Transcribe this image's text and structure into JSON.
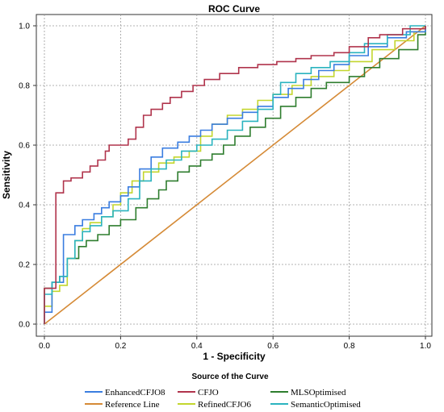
{
  "chart_data": {
    "type": "line",
    "title": "ROC Curve",
    "xlabel": "1 - Specificity",
    "ylabel": "Sensitivity",
    "xlim": [
      0,
      1
    ],
    "ylim": [
      0,
      1
    ],
    "xticks": [
      "0.0",
      "0.2",
      "0.4",
      "0.6",
      "0.8",
      "1.0"
    ],
    "yticks": [
      "0.0",
      "0.2",
      "0.4",
      "0.6",
      "0.8",
      "1.0"
    ],
    "grid": true,
    "legend_title": "Source of the Curve",
    "legend_position": "bottom",
    "series": [
      {
        "name": "EnhancedCFJO8",
        "color": "#3a7de0",
        "points": [
          [
            0,
            0
          ],
          [
            0,
            0.04
          ],
          [
            0.02,
            0.04
          ],
          [
            0.02,
            0.14
          ],
          [
            0.05,
            0.14
          ],
          [
            0.05,
            0.3
          ],
          [
            0.08,
            0.3
          ],
          [
            0.08,
            0.33
          ],
          [
            0.1,
            0.33
          ],
          [
            0.1,
            0.35
          ],
          [
            0.13,
            0.35
          ],
          [
            0.13,
            0.37
          ],
          [
            0.15,
            0.37
          ],
          [
            0.15,
            0.39
          ],
          [
            0.17,
            0.39
          ],
          [
            0.17,
            0.41
          ],
          [
            0.2,
            0.41
          ],
          [
            0.2,
            0.43
          ],
          [
            0.22,
            0.43
          ],
          [
            0.22,
            0.46
          ],
          [
            0.25,
            0.46
          ],
          [
            0.25,
            0.52
          ],
          [
            0.28,
            0.52
          ],
          [
            0.28,
            0.56
          ],
          [
            0.31,
            0.56
          ],
          [
            0.31,
            0.59
          ],
          [
            0.35,
            0.59
          ],
          [
            0.35,
            0.61
          ],
          [
            0.38,
            0.61
          ],
          [
            0.38,
            0.63
          ],
          [
            0.41,
            0.63
          ],
          [
            0.41,
            0.65
          ],
          [
            0.44,
            0.65
          ],
          [
            0.44,
            0.67
          ],
          [
            0.48,
            0.67
          ],
          [
            0.48,
            0.69
          ],
          [
            0.52,
            0.69
          ],
          [
            0.52,
            0.71
          ],
          [
            0.56,
            0.71
          ],
          [
            0.56,
            0.73
          ],
          [
            0.6,
            0.73
          ],
          [
            0.6,
            0.76
          ],
          [
            0.64,
            0.76
          ],
          [
            0.64,
            0.79
          ],
          [
            0.68,
            0.79
          ],
          [
            0.68,
            0.82
          ],
          [
            0.72,
            0.82
          ],
          [
            0.72,
            0.85
          ],
          [
            0.76,
            0.85
          ],
          [
            0.76,
            0.87
          ],
          [
            0.8,
            0.87
          ],
          [
            0.8,
            0.9
          ],
          [
            0.85,
            0.9
          ],
          [
            0.85,
            0.93
          ],
          [
            0.9,
            0.93
          ],
          [
            0.9,
            0.96
          ],
          [
            0.95,
            0.96
          ],
          [
            0.95,
            0.98
          ],
          [
            1,
            0.98
          ],
          [
            1,
            1
          ]
        ]
      },
      {
        "name": "CFJO",
        "color": "#b0344c",
        "points": [
          [
            0,
            0
          ],
          [
            0,
            0.12
          ],
          [
            0.03,
            0.12
          ],
          [
            0.03,
            0.44
          ],
          [
            0.05,
            0.44
          ],
          [
            0.05,
            0.48
          ],
          [
            0.07,
            0.48
          ],
          [
            0.07,
            0.49
          ],
          [
            0.1,
            0.49
          ],
          [
            0.1,
            0.51
          ],
          [
            0.12,
            0.51
          ],
          [
            0.12,
            0.53
          ],
          [
            0.14,
            0.53
          ],
          [
            0.14,
            0.55
          ],
          [
            0.16,
            0.55
          ],
          [
            0.16,
            0.58
          ],
          [
            0.17,
            0.58
          ],
          [
            0.17,
            0.6
          ],
          [
            0.22,
            0.6
          ],
          [
            0.22,
            0.62
          ],
          [
            0.24,
            0.62
          ],
          [
            0.24,
            0.66
          ],
          [
            0.26,
            0.66
          ],
          [
            0.26,
            0.7
          ],
          [
            0.28,
            0.7
          ],
          [
            0.28,
            0.72
          ],
          [
            0.31,
            0.72
          ],
          [
            0.31,
            0.74
          ],
          [
            0.33,
            0.74
          ],
          [
            0.33,
            0.76
          ],
          [
            0.36,
            0.76
          ],
          [
            0.36,
            0.78
          ],
          [
            0.39,
            0.78
          ],
          [
            0.39,
            0.8
          ],
          [
            0.42,
            0.8
          ],
          [
            0.42,
            0.82
          ],
          [
            0.46,
            0.82
          ],
          [
            0.46,
            0.84
          ],
          [
            0.51,
            0.84
          ],
          [
            0.51,
            0.86
          ],
          [
            0.56,
            0.86
          ],
          [
            0.56,
            0.87
          ],
          [
            0.61,
            0.87
          ],
          [
            0.61,
            0.88
          ],
          [
            0.66,
            0.88
          ],
          [
            0.66,
            0.89
          ],
          [
            0.7,
            0.89
          ],
          [
            0.7,
            0.9
          ],
          [
            0.76,
            0.9
          ],
          [
            0.76,
            0.91
          ],
          [
            0.8,
            0.91
          ],
          [
            0.8,
            0.93
          ],
          [
            0.85,
            0.93
          ],
          [
            0.85,
            0.96
          ],
          [
            0.88,
            0.96
          ],
          [
            0.88,
            0.97
          ],
          [
            0.94,
            0.97
          ],
          [
            0.94,
            0.99
          ],
          [
            1,
            0.99
          ],
          [
            1,
            1
          ]
        ]
      },
      {
        "name": "MLSOptimised",
        "color": "#2e7d2e",
        "points": [
          [
            0,
            0
          ],
          [
            0,
            0.12
          ],
          [
            0.02,
            0.12
          ],
          [
            0.02,
            0.14
          ],
          [
            0.04,
            0.14
          ],
          [
            0.04,
            0.16
          ],
          [
            0.06,
            0.16
          ],
          [
            0.06,
            0.22
          ],
          [
            0.09,
            0.22
          ],
          [
            0.09,
            0.26
          ],
          [
            0.11,
            0.26
          ],
          [
            0.11,
            0.28
          ],
          [
            0.14,
            0.28
          ],
          [
            0.14,
            0.3
          ],
          [
            0.17,
            0.3
          ],
          [
            0.17,
            0.33
          ],
          [
            0.2,
            0.33
          ],
          [
            0.2,
            0.35
          ],
          [
            0.24,
            0.35
          ],
          [
            0.24,
            0.39
          ],
          [
            0.27,
            0.39
          ],
          [
            0.27,
            0.42
          ],
          [
            0.3,
            0.42
          ],
          [
            0.3,
            0.45
          ],
          [
            0.32,
            0.45
          ],
          [
            0.32,
            0.48
          ],
          [
            0.35,
            0.48
          ],
          [
            0.35,
            0.51
          ],
          [
            0.38,
            0.51
          ],
          [
            0.38,
            0.53
          ],
          [
            0.41,
            0.53
          ],
          [
            0.41,
            0.55
          ],
          [
            0.44,
            0.55
          ],
          [
            0.44,
            0.57
          ],
          [
            0.47,
            0.57
          ],
          [
            0.47,
            0.6
          ],
          [
            0.5,
            0.6
          ],
          [
            0.5,
            0.63
          ],
          [
            0.54,
            0.63
          ],
          [
            0.54,
            0.66
          ],
          [
            0.58,
            0.66
          ],
          [
            0.58,
            0.69
          ],
          [
            0.62,
            0.69
          ],
          [
            0.62,
            0.73
          ],
          [
            0.66,
            0.73
          ],
          [
            0.66,
            0.76
          ],
          [
            0.7,
            0.76
          ],
          [
            0.7,
            0.79
          ],
          [
            0.74,
            0.79
          ],
          [
            0.74,
            0.81
          ],
          [
            0.8,
            0.81
          ],
          [
            0.8,
            0.83
          ],
          [
            0.84,
            0.83
          ],
          [
            0.84,
            0.86
          ],
          [
            0.88,
            0.86
          ],
          [
            0.88,
            0.89
          ],
          [
            0.93,
            0.89
          ],
          [
            0.93,
            0.92
          ],
          [
            0.98,
            0.92
          ],
          [
            0.98,
            0.97
          ],
          [
            1,
            0.97
          ],
          [
            1,
            1
          ]
        ]
      },
      {
        "name": "Reference Line",
        "color": "#d58a36",
        "points": [
          [
            0,
            0
          ],
          [
            1,
            1
          ]
        ]
      },
      {
        "name": "RefinedCFJO6",
        "color": "#c3d62e",
        "points": [
          [
            0,
            0
          ],
          [
            0,
            0.06
          ],
          [
            0.02,
            0.06
          ],
          [
            0.02,
            0.11
          ],
          [
            0.04,
            0.11
          ],
          [
            0.04,
            0.13
          ],
          [
            0.06,
            0.13
          ],
          [
            0.06,
            0.22
          ],
          [
            0.08,
            0.22
          ],
          [
            0.08,
            0.28
          ],
          [
            0.1,
            0.28
          ],
          [
            0.1,
            0.32
          ],
          [
            0.12,
            0.32
          ],
          [
            0.12,
            0.34
          ],
          [
            0.15,
            0.34
          ],
          [
            0.15,
            0.36
          ],
          [
            0.18,
            0.36
          ],
          [
            0.18,
            0.4
          ],
          [
            0.2,
            0.4
          ],
          [
            0.2,
            0.44
          ],
          [
            0.23,
            0.44
          ],
          [
            0.23,
            0.48
          ],
          [
            0.26,
            0.48
          ],
          [
            0.26,
            0.51
          ],
          [
            0.3,
            0.51
          ],
          [
            0.3,
            0.54
          ],
          [
            0.34,
            0.54
          ],
          [
            0.34,
            0.56
          ],
          [
            0.38,
            0.56
          ],
          [
            0.38,
            0.58
          ],
          [
            0.41,
            0.58
          ],
          [
            0.41,
            0.63
          ],
          [
            0.44,
            0.63
          ],
          [
            0.44,
            0.67
          ],
          [
            0.48,
            0.67
          ],
          [
            0.48,
            0.7
          ],
          [
            0.52,
            0.7
          ],
          [
            0.52,
            0.72
          ],
          [
            0.56,
            0.72
          ],
          [
            0.56,
            0.75
          ],
          [
            0.6,
            0.75
          ],
          [
            0.6,
            0.77
          ],
          [
            0.65,
            0.77
          ],
          [
            0.65,
            0.8
          ],
          [
            0.7,
            0.8
          ],
          [
            0.7,
            0.83
          ],
          [
            0.76,
            0.83
          ],
          [
            0.76,
            0.85
          ],
          [
            0.8,
            0.85
          ],
          [
            0.8,
            0.88
          ],
          [
            0.86,
            0.88
          ],
          [
            0.86,
            0.92
          ],
          [
            0.92,
            0.92
          ],
          [
            0.92,
            0.95
          ],
          [
            0.97,
            0.95
          ],
          [
            0.97,
            0.98
          ],
          [
            1,
            0.98
          ],
          [
            1,
            1
          ]
        ]
      },
      {
        "name": "SemanticOptimised",
        "color": "#2ab3bf",
        "points": [
          [
            0,
            0
          ],
          [
            0,
            0.1
          ],
          [
            0.02,
            0.1
          ],
          [
            0.02,
            0.14
          ],
          [
            0.04,
            0.14
          ],
          [
            0.04,
            0.16
          ],
          [
            0.06,
            0.16
          ],
          [
            0.06,
            0.22
          ],
          [
            0.08,
            0.22
          ],
          [
            0.08,
            0.28
          ],
          [
            0.1,
            0.28
          ],
          [
            0.1,
            0.31
          ],
          [
            0.12,
            0.31
          ],
          [
            0.12,
            0.33
          ],
          [
            0.15,
            0.33
          ],
          [
            0.15,
            0.36
          ],
          [
            0.18,
            0.36
          ],
          [
            0.18,
            0.38
          ],
          [
            0.22,
            0.38
          ],
          [
            0.22,
            0.42
          ],
          [
            0.25,
            0.42
          ],
          [
            0.25,
            0.48
          ],
          [
            0.28,
            0.48
          ],
          [
            0.28,
            0.52
          ],
          [
            0.32,
            0.52
          ],
          [
            0.32,
            0.55
          ],
          [
            0.36,
            0.55
          ],
          [
            0.36,
            0.58
          ],
          [
            0.4,
            0.58
          ],
          [
            0.4,
            0.6
          ],
          [
            0.44,
            0.6
          ],
          [
            0.44,
            0.62
          ],
          [
            0.48,
            0.62
          ],
          [
            0.48,
            0.65
          ],
          [
            0.52,
            0.65
          ],
          [
            0.52,
            0.68
          ],
          [
            0.56,
            0.68
          ],
          [
            0.56,
            0.72
          ],
          [
            0.6,
            0.72
          ],
          [
            0.6,
            0.77
          ],
          [
            0.62,
            0.77
          ],
          [
            0.62,
            0.81
          ],
          [
            0.66,
            0.81
          ],
          [
            0.66,
            0.84
          ],
          [
            0.7,
            0.84
          ],
          [
            0.7,
            0.86
          ],
          [
            0.75,
            0.86
          ],
          [
            0.75,
            0.88
          ],
          [
            0.8,
            0.88
          ],
          [
            0.8,
            0.91
          ],
          [
            0.84,
            0.91
          ],
          [
            0.84,
            0.94
          ],
          [
            0.9,
            0.94
          ],
          [
            0.9,
            0.97
          ],
          [
            0.96,
            0.97
          ],
          [
            0.96,
            1.0
          ],
          [
            1,
            1.0
          ]
        ]
      }
    ]
  }
}
